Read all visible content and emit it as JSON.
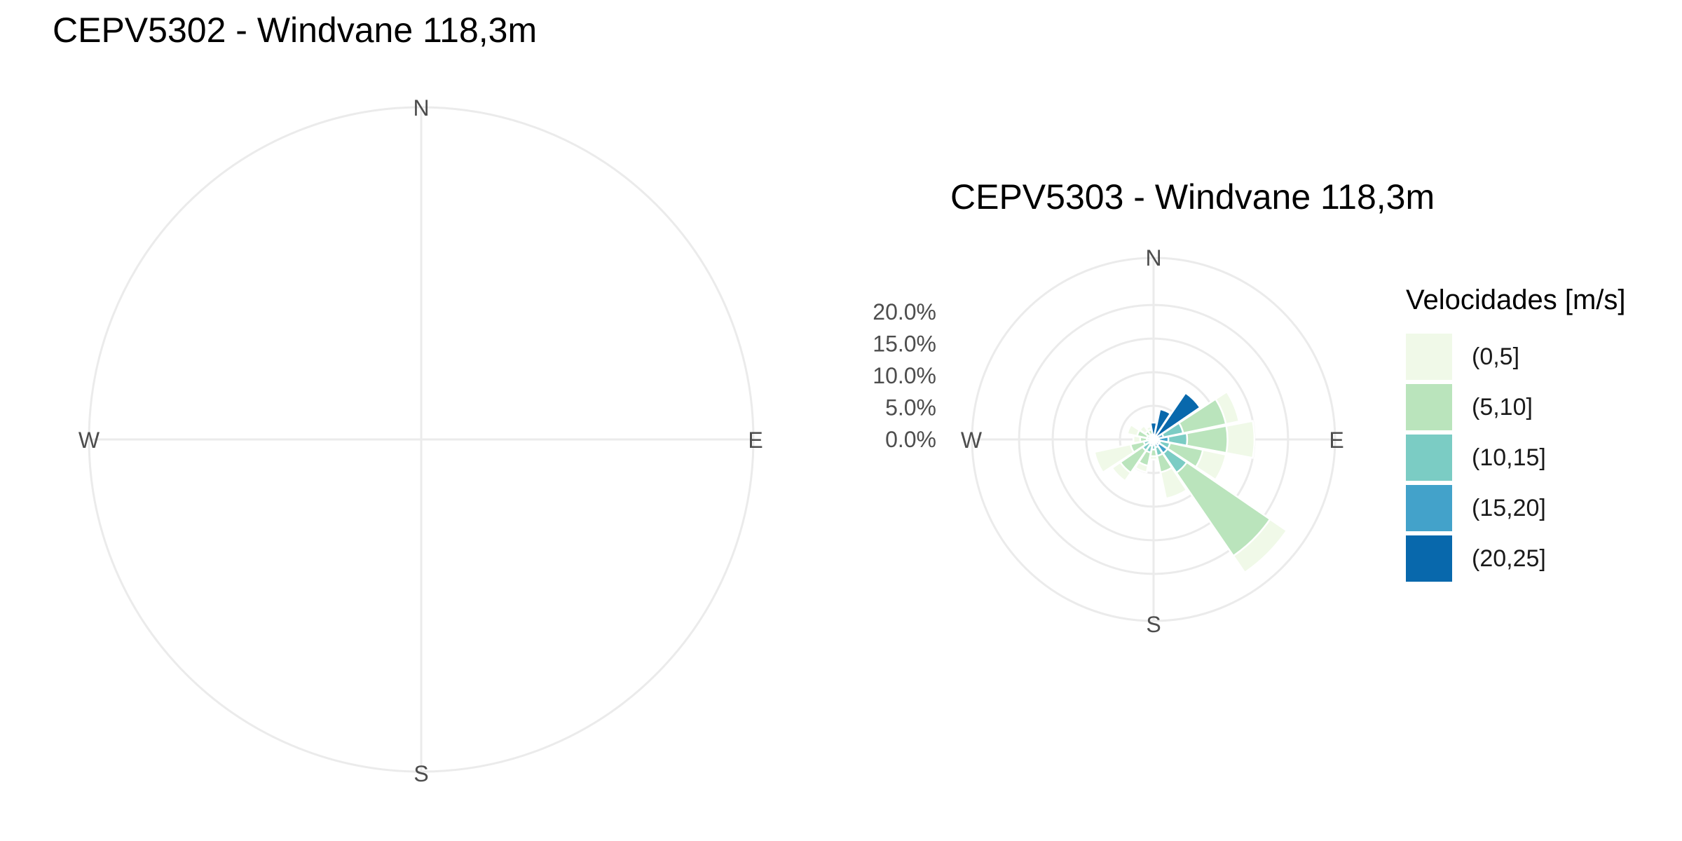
{
  "chart_data": [
    {
      "type": "wind_rose",
      "title": "CEPV5302 - Windvane 118,3m",
      "directions": [
        "N",
        "E",
        "S",
        "W"
      ],
      "sectors": []
    },
    {
      "type": "wind_rose",
      "title": "CEPV5303 - Windvane 118,3m",
      "directions": [
        "N",
        "E",
        "S",
        "W"
      ],
      "radial_ticks": [
        "0.0%",
        "5.0%",
        "10.0%",
        "15.0%",
        "20.0%"
      ],
      "radial_range": [
        0,
        27
      ],
      "sector_width_deg": 22.5,
      "bins": [
        "(0,5]",
        "(5,10]",
        "(10,15]",
        "(15,20]",
        "(20,25]"
      ],
      "legend_title": "Velocidades [m/s]",
      "bin_colors": [
        "#f0f9e8",
        "#bae4bc",
        "#7bccc4",
        "#43a2ca",
        "#0868ac"
      ],
      "sectors": [
        {
          "direction_deg": 0,
          "cumulative_percent": [
            1.5,
            2.0,
            2.3,
            2.4,
            2.5
          ]
        },
        {
          "direction_deg": 22.5,
          "cumulative_percent": [
            2.0,
            3.3,
            4.2,
            4.5,
            4.6
          ]
        },
        {
          "direction_deg": 45,
          "cumulative_percent": [
            4.0,
            7.0,
            8.0,
            8.3,
            8.4
          ]
        },
        {
          "direction_deg": 67.5,
          "cumulative_percent": [
            13.0,
            11.0,
            4.5,
            1.5,
            0.5
          ]
        },
        {
          "direction_deg": 90,
          "cumulative_percent": [
            15.0,
            11.0,
            5.0,
            2.2,
            0.8
          ]
        },
        {
          "direction_deg": 112.5,
          "cumulative_percent": [
            11.0,
            7.5,
            2.5,
            1.0,
            0.4
          ]
        },
        {
          "direction_deg": 135,
          "cumulative_percent": [
            24.0,
            21.0,
            6.0,
            2.5,
            1.0
          ]
        },
        {
          "direction_deg": 157.5,
          "cumulative_percent": [
            9.0,
            5.0,
            2.5,
            1.2,
            0.5
          ]
        },
        {
          "direction_deg": 180,
          "cumulative_percent": [
            3.0,
            2.5,
            1.5,
            0.8,
            0.4
          ]
        },
        {
          "direction_deg": 202.5,
          "cumulative_percent": [
            5.0,
            4.0,
            2.0,
            1.0,
            0.5
          ]
        },
        {
          "direction_deg": 225,
          "cumulative_percent": [
            7.5,
            6.0,
            2.0,
            0.8,
            0.4
          ]
        },
        {
          "direction_deg": 247.5,
          "cumulative_percent": [
            9.0,
            3.5,
            1.5,
            0.6,
            0.3
          ]
        },
        {
          "direction_deg": 270,
          "cumulative_percent": [
            3.0,
            2.0,
            1.0,
            0.5,
            0.3
          ]
        },
        {
          "direction_deg": 292.5,
          "cumulative_percent": [
            4.0,
            2.5,
            1.0,
            0.5,
            0.3
          ]
        },
        {
          "direction_deg": 315,
          "cumulative_percent": [
            2.5,
            1.5,
            0.8,
            0.4,
            0.2
          ]
        },
        {
          "direction_deg": 337.5,
          "cumulative_percent": [
            2.0,
            1.5,
            0.8,
            0.4,
            0.2
          ]
        }
      ]
    }
  ]
}
